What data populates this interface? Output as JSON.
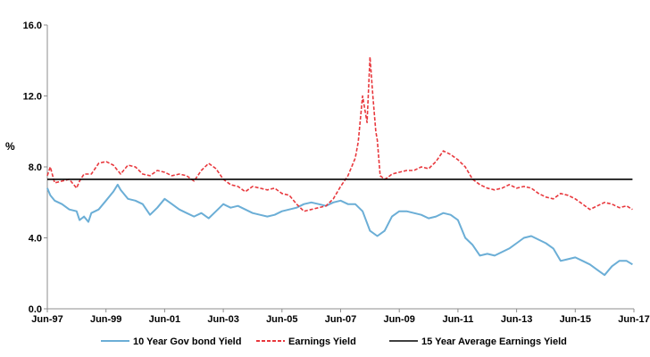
{
  "chart_data": {
    "type": "line",
    "title": "",
    "xlabel": "",
    "ylabel": "%",
    "ylim": [
      0,
      16
    ],
    "yticks": [
      "0.0",
      "4.0",
      "8.0",
      "12.0",
      "16.0"
    ],
    "xlim": [
      1997.5,
      2017.5
    ],
    "xticks": [
      "Jun-97",
      "Jun-99",
      "Jun-01",
      "Jun-03",
      "Jun-05",
      "Jun-07",
      "Jun-09",
      "Jun-11",
      "Jun-13",
      "Jun-15",
      "Jun-17"
    ],
    "grid": false,
    "legend_position": "bottom",
    "series": [
      {
        "name": "10 Year Gov bond Yield",
        "color": "#6baed6",
        "style": "solid",
        "x": [
          1997.5,
          1997.6,
          1997.75,
          1998.0,
          1998.25,
          1998.5,
          1998.6,
          1998.75,
          1998.9,
          1999.0,
          1999.25,
          1999.5,
          1999.75,
          1999.9,
          2000.0,
          2000.25,
          2000.5,
          2000.75,
          2001.0,
          2001.25,
          2001.5,
          2001.75,
          2002.0,
          2002.25,
          2002.5,
          2002.75,
          2003.0,
          2003.25,
          2003.5,
          2003.75,
          2004.0,
          2004.25,
          2004.5,
          2004.75,
          2005.0,
          2005.25,
          2005.5,
          2005.75,
          2006.0,
          2006.25,
          2006.5,
          2006.75,
          2007.0,
          2007.25,
          2007.5,
          2007.75,
          2008.0,
          2008.25,
          2008.5,
          2008.75,
          2009.0,
          2009.25,
          2009.5,
          2009.75,
          2010.0,
          2010.25,
          2010.5,
          2010.75,
          2011.0,
          2011.25,
          2011.5,
          2011.75,
          2012.0,
          2012.25,
          2012.5,
          2012.75,
          2013.0,
          2013.25,
          2013.5,
          2013.75,
          2014.0,
          2014.25,
          2014.5,
          2014.75,
          2015.0,
          2015.25,
          2015.5,
          2015.75,
          2016.0,
          2016.25,
          2016.5,
          2016.75,
          2017.0,
          2017.25,
          2017.45
        ],
        "values": [
          6.8,
          6.4,
          6.1,
          5.9,
          5.6,
          5.5,
          5.0,
          5.2,
          4.9,
          5.4,
          5.6,
          6.1,
          6.6,
          7.0,
          6.7,
          6.2,
          6.1,
          5.9,
          5.3,
          5.7,
          6.2,
          5.9,
          5.6,
          5.4,
          5.2,
          5.4,
          5.1,
          5.5,
          5.9,
          5.7,
          5.8,
          5.6,
          5.4,
          5.3,
          5.2,
          5.3,
          5.5,
          5.6,
          5.7,
          5.9,
          6.0,
          5.9,
          5.8,
          6.0,
          6.1,
          5.9,
          5.9,
          5.5,
          4.4,
          4.1,
          4.4,
          5.2,
          5.5,
          5.5,
          5.4,
          5.3,
          5.1,
          5.2,
          5.4,
          5.3,
          5.0,
          4.0,
          3.6,
          3.0,
          3.1,
          3.0,
          3.2,
          3.4,
          3.7,
          4.0,
          4.1,
          3.9,
          3.7,
          3.4,
          2.7,
          2.8,
          2.9,
          2.7,
          2.5,
          2.2,
          1.9,
          2.4,
          2.7,
          2.7,
          2.5
        ]
      },
      {
        "name": "Earnings Yield",
        "color": "#e8383d",
        "style": "dashed",
        "x": [
          1997.5,
          1997.6,
          1997.75,
          1998.0,
          1998.25,
          1998.5,
          1998.6,
          1998.75,
          1999.0,
          1999.25,
          1999.5,
          1999.75,
          2000.0,
          2000.25,
          2000.5,
          2000.75,
          2001.0,
          2001.25,
          2001.5,
          2001.75,
          2002.0,
          2002.25,
          2002.5,
          2002.75,
          2003.0,
          2003.25,
          2003.5,
          2003.75,
          2004.0,
          2004.25,
          2004.5,
          2004.75,
          2005.0,
          2005.25,
          2005.5,
          2005.75,
          2006.0,
          2006.25,
          2006.5,
          2006.75,
          2007.0,
          2007.25,
          2007.5,
          2007.75,
          2008.0,
          2008.1,
          2008.25,
          2008.4,
          2008.5,
          2008.6,
          2008.7,
          2008.75,
          2008.85,
          2009.0,
          2009.1,
          2009.25,
          2009.5,
          2009.75,
          2010.0,
          2010.25,
          2010.5,
          2010.75,
          2011.0,
          2011.25,
          2011.5,
          2011.75,
          2012.0,
          2012.25,
          2012.5,
          2012.75,
          2013.0,
          2013.25,
          2013.5,
          2013.75,
          2014.0,
          2014.25,
          2014.5,
          2014.75,
          2015.0,
          2015.25,
          2015.5,
          2015.75,
          2016.0,
          2016.25,
          2016.5,
          2016.75,
          2017.0,
          2017.25,
          2017.45
        ],
        "values": [
          7.5,
          8.0,
          7.1,
          7.2,
          7.3,
          6.8,
          7.2,
          7.6,
          7.6,
          8.2,
          8.3,
          8.1,
          7.6,
          8.1,
          8.0,
          7.6,
          7.5,
          7.8,
          7.7,
          7.5,
          7.6,
          7.5,
          7.2,
          7.8,
          8.2,
          7.9,
          7.3,
          7.0,
          6.9,
          6.6,
          6.9,
          6.8,
          6.7,
          6.8,
          6.5,
          6.4,
          5.9,
          5.5,
          5.6,
          5.7,
          5.8,
          6.2,
          6.9,
          7.5,
          8.5,
          9.4,
          12.0,
          10.5,
          14.2,
          12.0,
          10.0,
          9.5,
          7.5,
          7.3,
          7.4,
          7.6,
          7.7,
          7.8,
          7.8,
          8.0,
          7.9,
          8.3,
          8.9,
          8.7,
          8.4,
          8.0,
          7.3,
          7.0,
          6.8,
          6.7,
          6.8,
          7.0,
          6.8,
          6.9,
          6.8,
          6.5,
          6.3,
          6.2,
          6.5,
          6.4,
          6.2,
          5.9,
          5.6,
          5.8,
          6.0,
          5.9,
          5.7,
          5.8,
          5.6
        ]
      },
      {
        "name": "15 Year Average Earnings Yield",
        "color": "#000000",
        "style": "solid",
        "x": [
          1997.5,
          2017.45
        ],
        "values": [
          7.3,
          7.3
        ]
      }
    ]
  }
}
